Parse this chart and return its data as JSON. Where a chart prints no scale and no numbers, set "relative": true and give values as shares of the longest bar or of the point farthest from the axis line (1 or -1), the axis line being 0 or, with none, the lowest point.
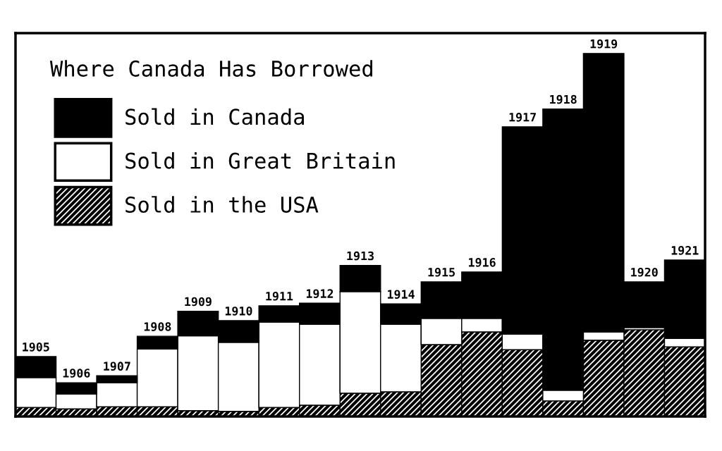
{
  "chart_data": {
    "type": "bar",
    "title": "Where Canada Has Borrowed",
    "relative": true,
    "stacked": true,
    "legend": "top left",
    "grid": false,
    "categories": [
      "1905",
      "1906",
      "1907",
      "1908",
      "1909",
      "1910",
      "1911",
      "1912",
      "1913",
      "1914",
      "1915",
      "1916",
      "1917",
      "1918",
      "1919",
      "1920",
      "1921"
    ],
    "series": [
      {
        "name": "Sold in the USA",
        "color": "#000000",
        "values": [
          0.025,
          0.021,
          0.027,
          0.027,
          0.016,
          0.014,
          0.025,
          0.031,
          0.064,
          0.068,
          0.198,
          0.233,
          0.184,
          0.043,
          0.21,
          0.239,
          0.192
        ]
      },
      {
        "name": "Sold in Great Britain",
        "color": "#ffffff",
        "values": [
          0.082,
          0.041,
          0.066,
          0.159,
          0.206,
          0.19,
          0.235,
          0.223,
          0.28,
          0.186,
          0.072,
          0.037,
          0.043,
          0.029,
          0.023,
          0.006,
          0.023
        ]
      },
      {
        "name": "Sold in Canada",
        "color": "#000000",
        "values": [
          0.058,
          0.031,
          0.019,
          0.035,
          0.068,
          0.06,
          0.045,
          0.058,
          0.072,
          0.056,
          0.101,
          0.128,
          0.571,
          0.775,
          0.767,
          0.126,
          0.216
        ]
      }
    ]
  }
}
